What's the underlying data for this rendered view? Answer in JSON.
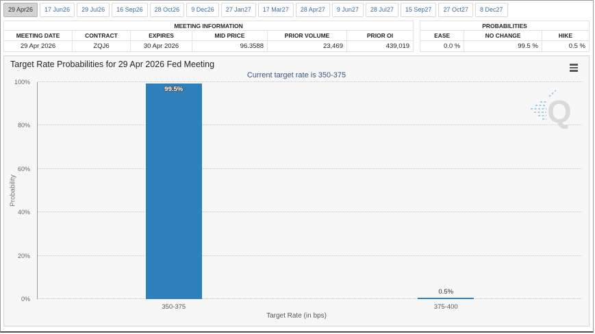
{
  "tabs": {
    "active": "29 Apr26",
    "items": [
      "29 Apr26",
      "17 Jun26",
      "29 Jul26",
      "16 Sep26",
      "28 Oct26",
      "9 Dec26",
      "27 Jan27",
      "17 Mar27",
      "28 Apr27",
      "9 Jun27",
      "28 Jul27",
      "15 Sep27",
      "27 Oct27",
      "8 Dec27"
    ]
  },
  "meeting_information": {
    "title": "MEETING INFORMATION",
    "columns": [
      "MEETING DATE",
      "CONTRACT",
      "EXPIRES",
      "MID PRICE",
      "PRIOR VOLUME",
      "PRIOR OI"
    ],
    "values": [
      "29 Apr 2026",
      "ZQJ6",
      "30 Apr 2026",
      "96.3588",
      "23,469",
      "439,019"
    ]
  },
  "probabilities": {
    "title": "PROBABILITIES",
    "columns": [
      "EASE",
      "NO CHANGE",
      "HIKE"
    ],
    "values": [
      "0.0 %",
      "99.5 %",
      "0.5 %"
    ]
  },
  "chart_data": {
    "type": "bar",
    "title": "Target Rate Probabilities for 29 Apr 2026 Fed Meeting",
    "subtitle": "Current target rate is 350-375",
    "categories": [
      "350-375",
      "375-400"
    ],
    "values": [
      99.5,
      0.5
    ],
    "bar_labels": [
      "99.5%",
      "0.5%"
    ],
    "xlabel": "Target Rate (in bps)",
    "ylabel": "Probability",
    "ylim": [
      0,
      100
    ],
    "yticks": [
      0,
      20,
      40,
      60,
      80,
      100
    ],
    "ytick_labels": [
      "0%",
      "20%",
      "40%",
      "60%",
      "80%",
      "100%"
    ],
    "grid": "horizontal dotted",
    "legend": "none",
    "bar_color": "#2e80bc"
  },
  "icons": {
    "menu": "hamburger-menu-icon",
    "watermark": "quikstrike-q-logo"
  },
  "colors": {
    "bar": "#2e80bc",
    "subtitle_text": "#33567d",
    "tab_text": "#3b6e9e",
    "panel_bg": "#f7f7f7"
  }
}
